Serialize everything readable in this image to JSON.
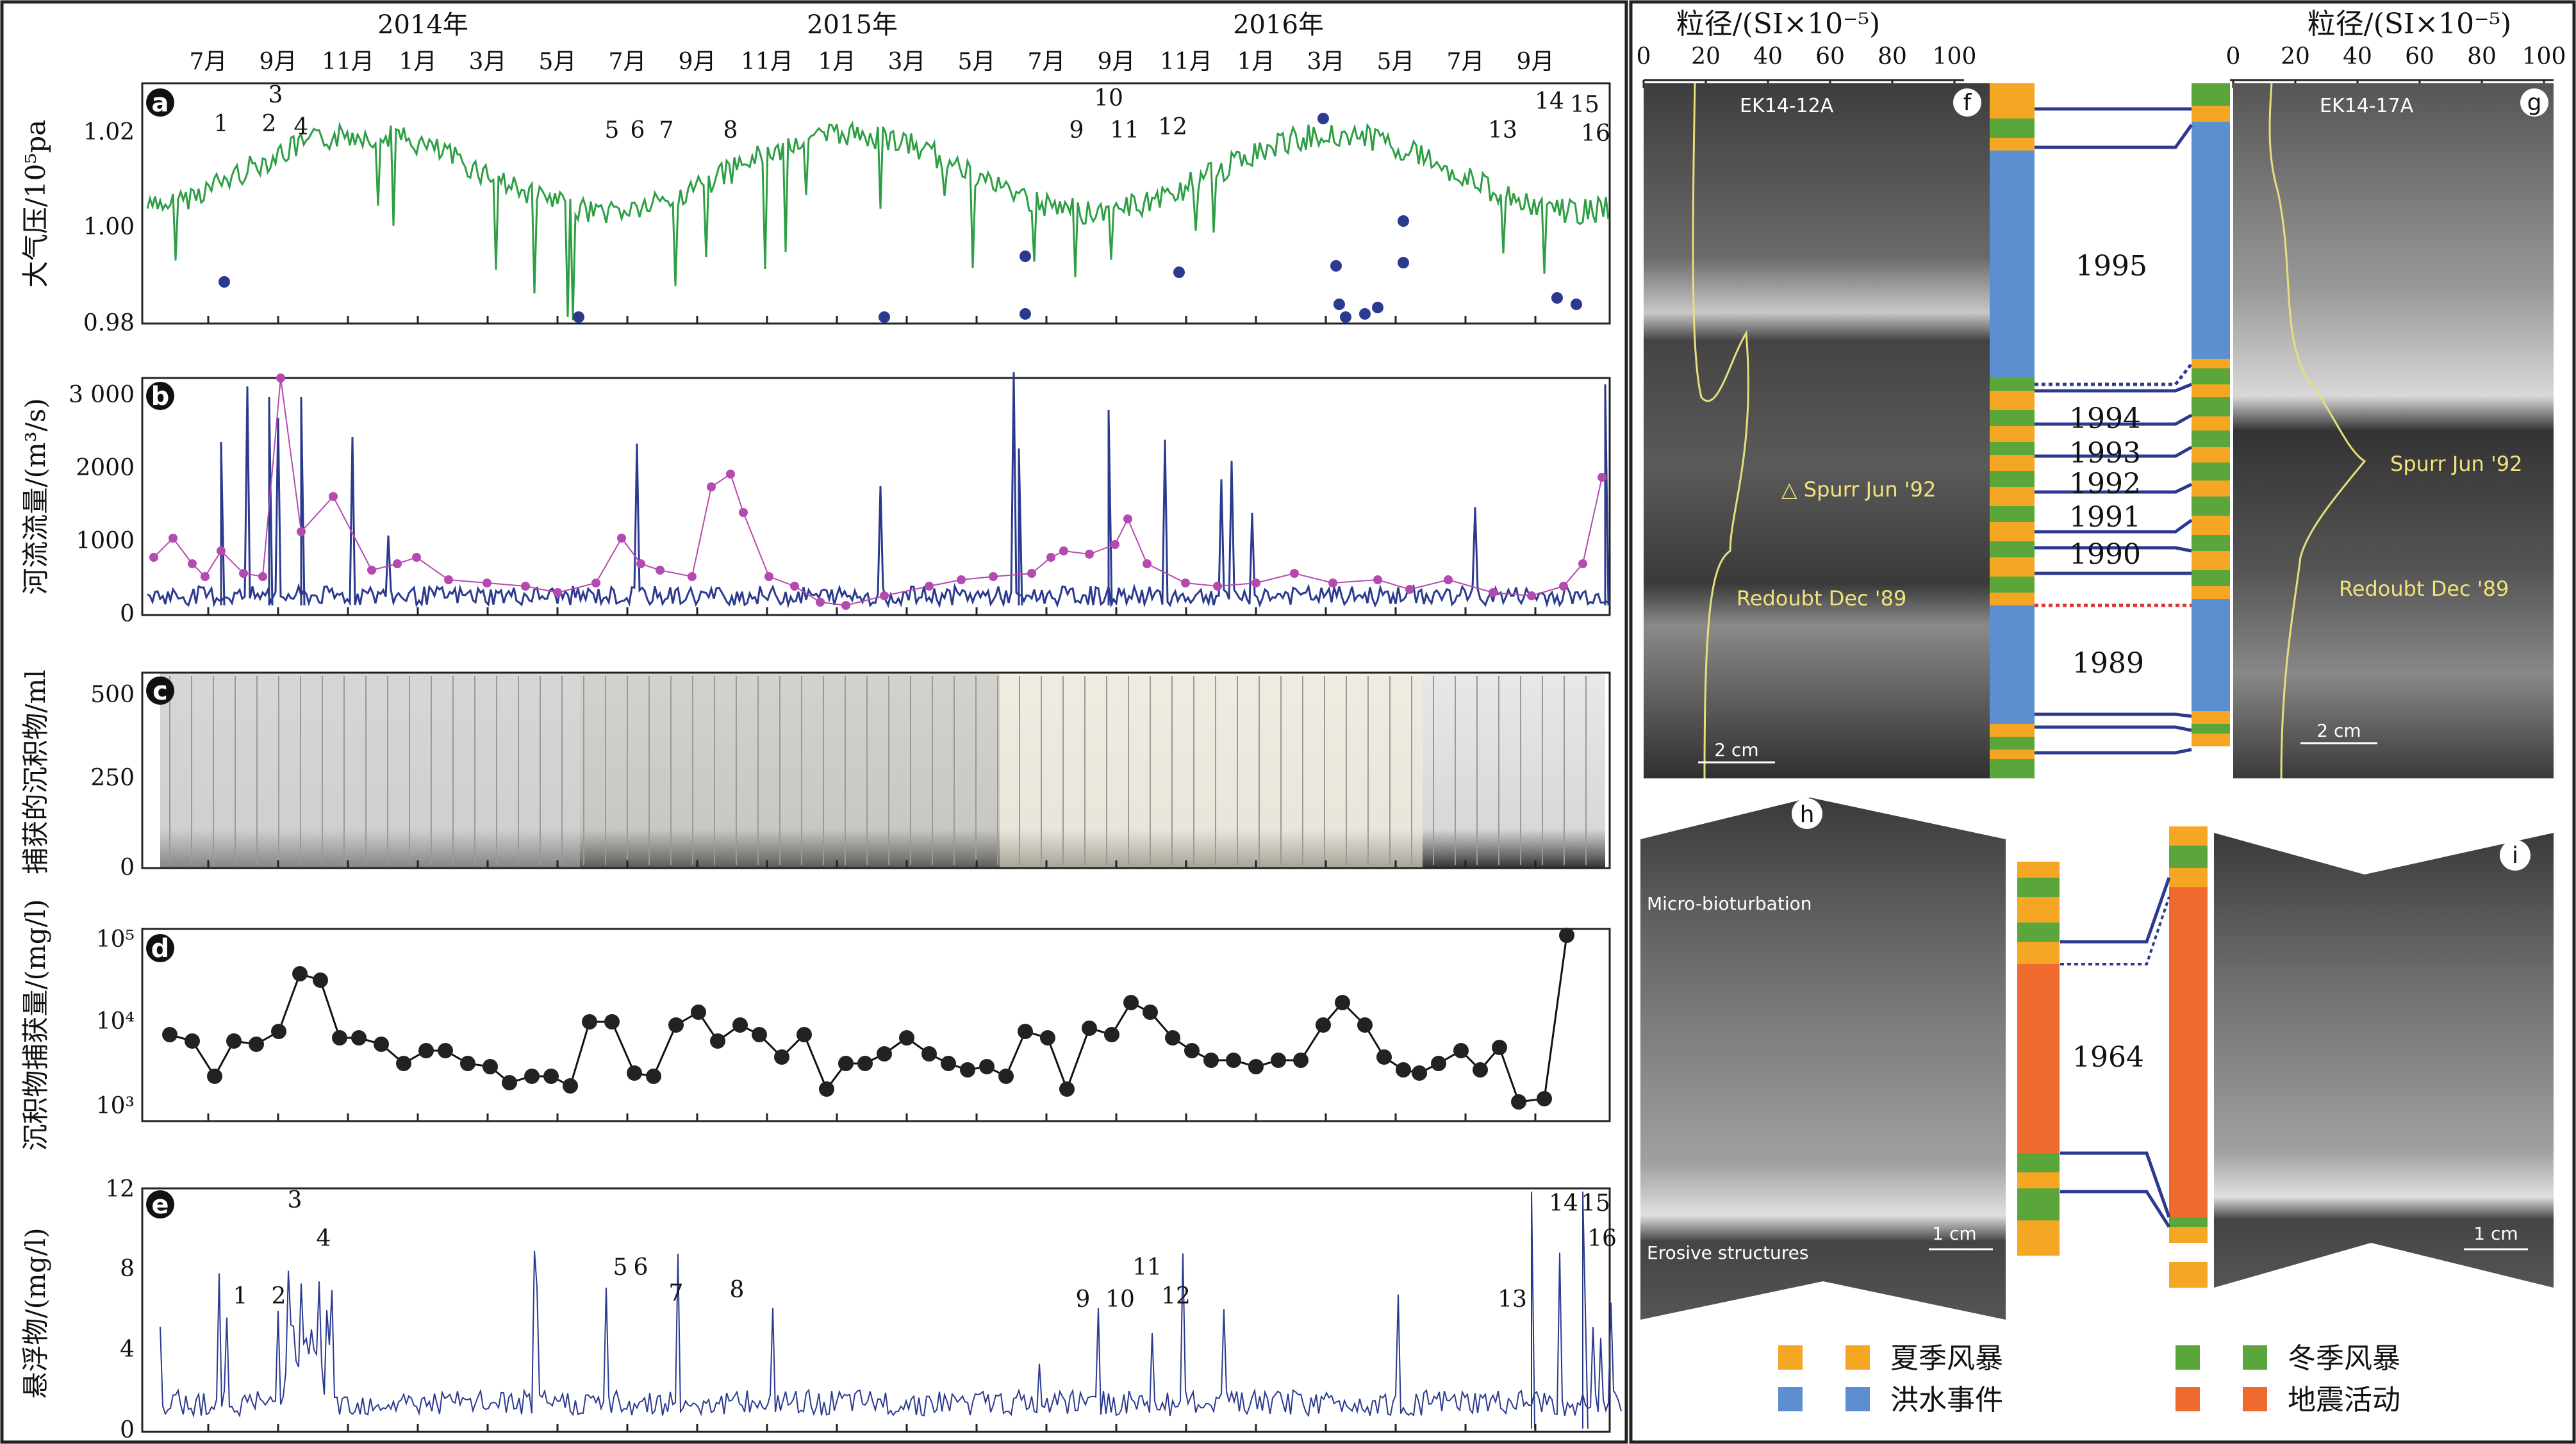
{
  "years": [
    "2014年",
    "2015年",
    "2016年"
  ],
  "months": [
    "7月",
    "9月",
    "11月",
    "1月",
    "3月",
    "5月",
    "7月",
    "9月",
    "11月",
    "1月",
    "3月",
    "5月",
    "7月",
    "9月",
    "11月",
    "1月",
    "3月",
    "5月",
    "7月",
    "9月"
  ],
  "panels": {
    "a": {
      "ylabel": "大气压/10⁵pa",
      "ticks": [
        "0.98",
        "1.00",
        "1.02"
      ]
    },
    "b": {
      "ylabel": "河流流量/(m³/s)",
      "ticks": [
        "0",
        "1000",
        "2000",
        "3 000"
      ]
    },
    "c": {
      "ylabel": "捕获的沉积物/ml",
      "ticks": [
        "0",
        "250",
        "500"
      ]
    },
    "d": {
      "ylabel": "沉积物捕获量/(mg/l)",
      "ticks": [
        "10³",
        "10⁴",
        "10⁵"
      ]
    },
    "e": {
      "ylabel": "悬浮物/(mg/l)",
      "ticks": [
        "0",
        "4",
        "8",
        "12"
      ]
    }
  },
  "event_numbers": [
    "1",
    "2",
    "3",
    "4",
    "5",
    "6",
    "7",
    "8",
    "9",
    "10",
    "11",
    "12",
    "13",
    "14",
    "15",
    "16"
  ],
  "right": {
    "grain_axis_label": "粒径/(SI×10⁻⁵)",
    "grain_ticks": [
      "0",
      "20",
      "40",
      "60",
      "80",
      "100"
    ],
    "cores": [
      "EK14-12A",
      "EK14-17A"
    ],
    "tephra": [
      "Spurr Jun '92",
      "Redoubt Dec '89"
    ],
    "scale_2cm": "2 cm",
    "scale_1cm": "1 cm",
    "years": [
      "1995",
      "1994",
      "1993",
      "1992",
      "1991",
      "1990",
      "1989",
      "1964"
    ],
    "h_labels": [
      "Micro-bioturbation",
      "Erosive structures"
    ]
  },
  "legend": [
    "夏季风暴",
    "洪水事件",
    "冬季风暴",
    "地震活动"
  ],
  "colors": {
    "summer": "#f5a623",
    "flood": "#5b8fd0",
    "winter": "#5aa63a",
    "quake": "#ee6a2e",
    "pressure": "#2e9e44",
    "discharge": "#2b3a8f",
    "ssc_dots": "#b44ab0"
  }
}
